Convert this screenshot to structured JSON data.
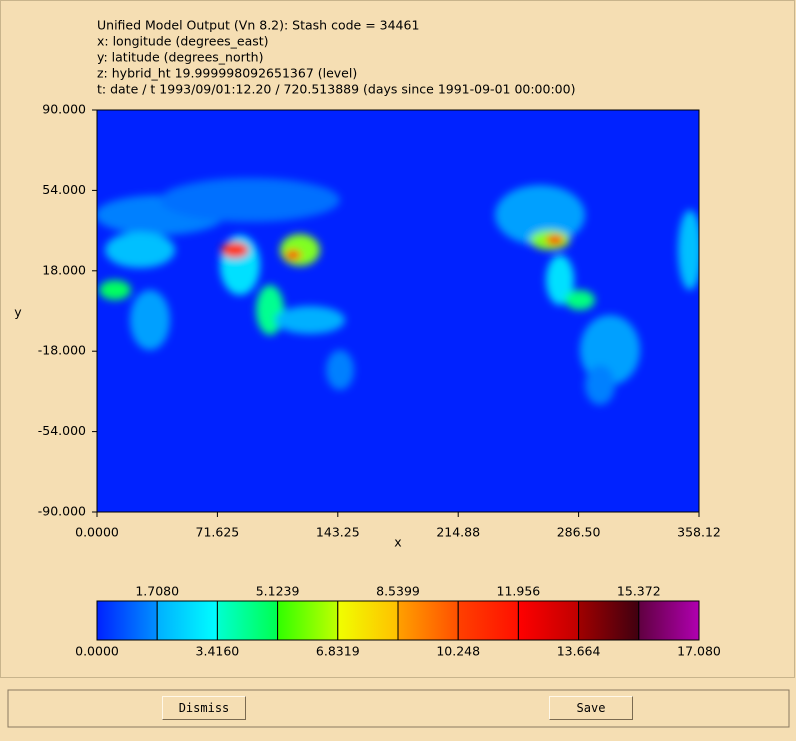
{
  "header": {
    "lines": [
      "Unified Model Output (Vn 8.2): Stash code = 34461",
      "x: longitude  (degrees_east)",
      "y: latitude  (degrees_north)",
      "z: hybrid_ht 19.999998092651367 (level)",
      "t: date / t 1993/09/01:12.20 / 720.513889 (days since 1991-09-01 00:00:00)"
    ]
  },
  "plot": {
    "x_label": "x",
    "y_label": "y",
    "x_ticks": [
      "0.0000",
      "71.625",
      "143.25",
      "214.88",
      "286.50",
      "358.12"
    ],
    "y_ticks": [
      "90.000",
      "54.000",
      "18.000",
      "-18.000",
      "-54.000",
      "-90.000"
    ]
  },
  "colorbar": {
    "top_ticks": [
      "1.7080",
      "5.1239",
      "8.5399",
      "11.956",
      "15.372"
    ],
    "bottom_ticks": [
      "0.0000",
      "3.4160",
      "6.8319",
      "10.248",
      "13.664",
      "17.080"
    ]
  },
  "buttons": [
    "Dismiss",
    "Save"
  ]
}
